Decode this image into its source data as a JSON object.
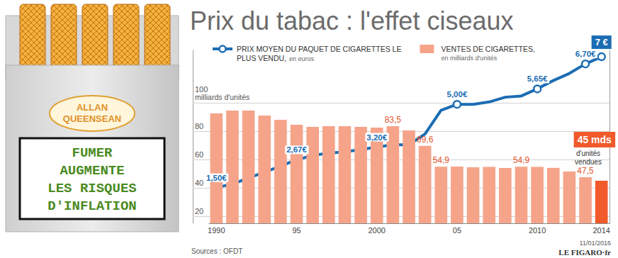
{
  "chart_data": {
    "type": "bar",
    "title": "Prix du tabac : l'effet ciseaux",
    "y_label": "milliards d'unités",
    "categories": [
      "1990",
      null,
      null,
      null,
      null,
      "95",
      null,
      null,
      null,
      null,
      "2000",
      null,
      null,
      null,
      null,
      "05",
      null,
      null,
      null,
      null,
      "2010",
      null,
      null,
      null,
      "2014"
    ],
    "series": [
      {
        "name": "PRIX MOYEN DU PAQUET DE CIGARETTES LE PLUS VENDU,",
        "unit": "en euros",
        "type": "line",
        "axis": "y2",
        "color": "#1b6db3",
        "marker": "circle",
        "values": [
          1.5,
          1.65,
          1.9,
          2.15,
          2.4,
          2.67,
          2.85,
          2.95,
          3.0,
          3.1,
          3.2,
          3.3,
          3.3,
          3.75,
          4.75,
          5.0,
          5.0,
          5.1,
          5.3,
          5.35,
          5.65,
          6.0,
          6.3,
          6.7,
          7
        ],
        "value_labels": [
          "1,50€",
          null,
          null,
          null,
          null,
          "2,67€",
          null,
          null,
          null,
          null,
          "3,20€",
          null,
          null,
          null,
          null,
          "5,00€",
          null,
          null,
          null,
          null,
          "5,65€",
          null,
          null,
          "6,70€",
          "7 €"
        ]
      },
      {
        "name": "VENTES DE CIGARETTES,",
        "unit": "en milliards d'unités",
        "type": "bar",
        "color": "#f5a48a",
        "colors": [
          "#f5a48a",
          "#f5a48a",
          "#f5a48a",
          "#f5a48a",
          "#f5a48a",
          "#f5a48a",
          "#f5a48a",
          "#f5a48a",
          "#f5a48a",
          "#f5a48a",
          "#f5a48a",
          "#f5a48a",
          "#f5a48a",
          "#f5a48a",
          "#f5a48a",
          "#f5a48a",
          "#f5a48a",
          "#f5a48a",
          "#f5a48a",
          "#f5a48a",
          "#f5a48a",
          "#f5a48a",
          "#f5a48a",
          "#f5a48a",
          "#f15a2b"
        ],
        "values": [
          92.5,
          94.5,
          94.5,
          91,
          88,
          84.5,
          83,
          83.5,
          83.5,
          83,
          82.5,
          83.5,
          80.5,
          69.6,
          54.9,
          55,
          54.5,
          54.8,
          54,
          54.9,
          54.8,
          54.1,
          51.5,
          47.5,
          45
        ],
        "value_labels": [
          null,
          null,
          null,
          null,
          null,
          null,
          null,
          null,
          null,
          null,
          null,
          "83,5",
          null,
          "69,6",
          "54,9",
          null,
          null,
          null,
          null,
          "54,9",
          null,
          null,
          null,
          "47,5",
          "45 mds"
        ]
      }
    ],
    "annotations": [
      {
        "text": "d'unités vendues",
        "category": "2014"
      }
    ],
    "ylim": [
      15,
      137.5
    ],
    "yticks": [
      20,
      40,
      60,
      80,
      100
    ],
    "y2lim": [
      0,
      7.3
    ],
    "y2ticks": [],
    "grid": true,
    "legend": "top",
    "data_labels": true
  },
  "illustration": {
    "brand": [
      "ALLAN",
      "QUEENSEAN"
    ],
    "warning": [
      "FUMER",
      "AUGMENTE",
      "LES RISQUES",
      "D'INFLATION"
    ]
  },
  "source": "Sources : OFDT",
  "date": "11/01/2016",
  "publisher": "LE FIGARO·fr"
}
